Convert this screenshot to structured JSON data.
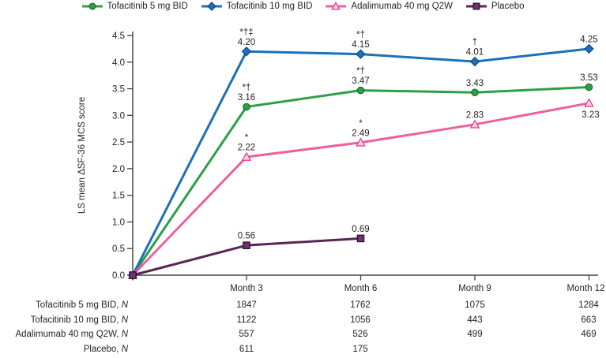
{
  "chart_data": {
    "type": "line",
    "title": "",
    "xlabel": "",
    "ylabel": "LS mean ΔSF-36 MCS score",
    "ylim": [
      0.0,
      4.5
    ],
    "ytick_step": 0.5,
    "ytick_labels": [
      "0.0",
      "0.5",
      "1.0",
      "1.5",
      "2.0",
      "2.5",
      "3.0",
      "3.5",
      "4.0",
      "4.5"
    ],
    "months": [
      "Month 3",
      "Month 6",
      "Month 9",
      "Month 12"
    ],
    "grid": "off",
    "legend_position": "top-center",
    "axis_color": "#414042",
    "series": [
      {
        "name": "Tofacitinib 5 mg BID",
        "marker": "circle",
        "color": "#2f9e48",
        "marker_fill": "#2f9e48",
        "marker_stroke": "#156b2e",
        "values": [
          0.0,
          3.16,
          3.47,
          3.43,
          3.53
        ],
        "point_labels": [
          "",
          "3.16",
          "3.47",
          "3.43",
          "3.53"
        ],
        "significance": [
          "",
          "*†",
          "*†",
          "",
          ""
        ],
        "label_side": [
          "",
          "above",
          "above",
          "above",
          "above"
        ]
      },
      {
        "name": "Tofacitinib 10 mg BID",
        "marker": "diamond",
        "color": "#1c70b7",
        "marker_fill": "#1c70b7",
        "marker_stroke": "#0d4b86",
        "values": [
          0.0,
          4.2,
          4.15,
          4.01,
          4.25
        ],
        "point_labels": [
          "",
          "4.20",
          "4.15",
          "4.01",
          "4.25"
        ],
        "significance": [
          "",
          "*†‡",
          "*†",
          "†",
          ""
        ],
        "label_side": [
          "",
          "above",
          "above",
          "above",
          "above"
        ]
      },
      {
        "name": "Adalimumab 40 mg Q2W",
        "marker": "triangle",
        "color": "#ee5f9c",
        "marker_fill": "#f9d2e2",
        "marker_stroke": "#e5368c",
        "values": [
          0.0,
          2.22,
          2.49,
          2.83,
          3.23
        ],
        "point_labels": [
          "",
          "2.22",
          "2.49",
          "2.83",
          "3.23"
        ],
        "significance": [
          "",
          "*",
          "*",
          "",
          ""
        ],
        "label_side": [
          "",
          "above",
          "above",
          "above",
          "below"
        ]
      },
      {
        "name": "Placebo",
        "marker": "square",
        "color": "#5a2459",
        "marker_fill": "#6d3370",
        "marker_stroke": "#241027",
        "values": [
          0.0,
          0.56,
          0.69,
          null,
          null
        ],
        "point_labels": [
          "",
          "0.56",
          "0.69",
          "",
          ""
        ],
        "significance": [
          "",
          "",
          "",
          "",
          ""
        ],
        "label_side": [
          "",
          "above",
          "above",
          "",
          ""
        ]
      }
    ]
  },
  "table": {
    "n_symbol": "N",
    "rows": [
      {
        "label": "Tofacitinib 5 mg BID,",
        "n": "N",
        "values": [
          "1847",
          "1762",
          "1075",
          "1284"
        ]
      },
      {
        "label": "Tofacitinib 10 mg BID,",
        "n": "N",
        "values": [
          "1122",
          "1056",
          "443",
          "663"
        ]
      },
      {
        "label": "Adalimumab 40 mg Q2W,",
        "n": "N",
        "values": [
          "557",
          "526",
          "499",
          "469"
        ]
      },
      {
        "label": "Placebo,",
        "n": "N",
        "values": [
          "611",
          "175",
          "",
          ""
        ]
      }
    ]
  }
}
